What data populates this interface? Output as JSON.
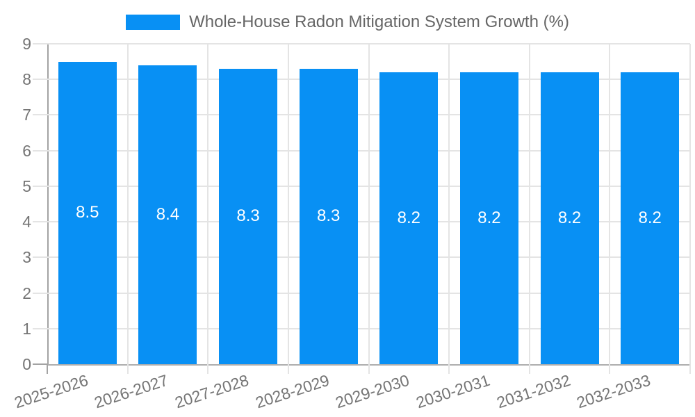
{
  "chart_data": {
    "type": "bar",
    "title": "Whole-House Radon Mitigation System Growth (%)",
    "categories": [
      "2025-2026",
      "2026-2027",
      "2027-2028",
      "2028-2029",
      "2029-2030",
      "2030-2031",
      "2031-2032",
      "2032-2033"
    ],
    "values": [
      8.5,
      8.4,
      8.3,
      8.3,
      8.2,
      8.2,
      8.2,
      8.2
    ],
    "value_labels": [
      "8.5",
      "8.4",
      "8.3",
      "8.3",
      "8.2",
      "8.2",
      "8.2",
      "8.2"
    ],
    "xlabel": "",
    "ylabel": "",
    "ylim": [
      0,
      9
    ],
    "yticks": [
      0,
      1,
      2,
      3,
      4,
      5,
      6,
      7,
      8,
      9
    ],
    "grid": true,
    "legend_position": "top",
    "colors": {
      "bar": "#0890F4",
      "bar_value_text": "#ffffff",
      "grid": "#e4e4e4",
      "axis": "#a3a3a3",
      "tick_text": "#757575",
      "legend_text": "#666666"
    }
  }
}
